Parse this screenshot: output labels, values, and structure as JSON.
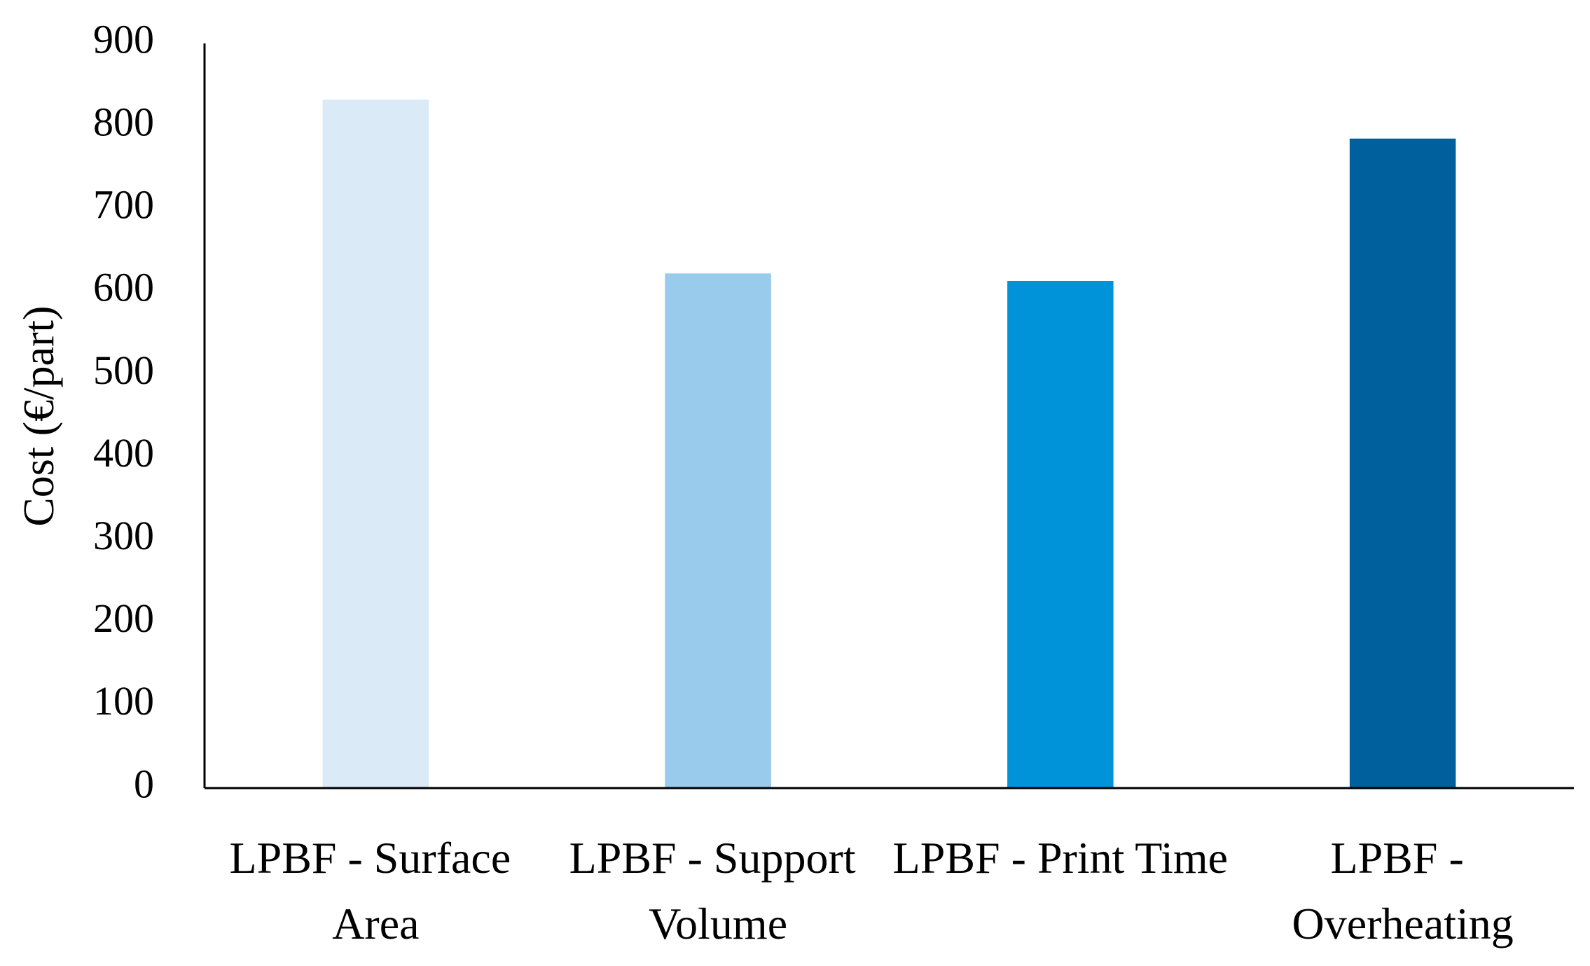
{
  "chart_data": {
    "type": "bar",
    "y_label": "Cost (€/part)",
    "categories": [
      "LPBF - Surface Area",
      "LPBF - Support Volume",
      "LPBF - Print Time",
      "LPBF - Overheating"
    ],
    "values": [
      832,
      622,
      613,
      785
    ],
    "colors": [
      "#daeaf7",
      "#99cbec",
      "#0093d9",
      "#00609d"
    ],
    "ylim": [
      0,
      900
    ],
    "yticks": [
      0,
      100,
      200,
      300,
      400,
      500,
      600,
      700,
      800,
      900
    ],
    "grid": false
  }
}
